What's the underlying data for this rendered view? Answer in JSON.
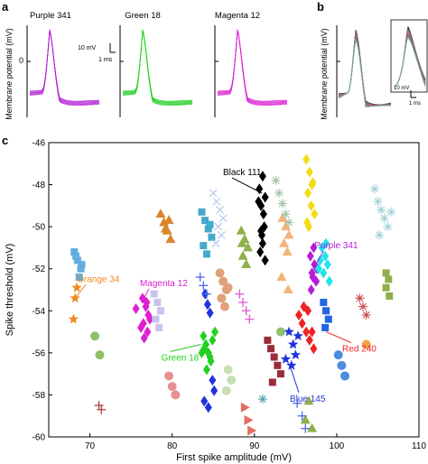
{
  "panels": {
    "a": {
      "label": "a",
      "ylabel": "Membrane potential (mV)",
      "zero_tick": "0",
      "scalebar_v": "10 mV",
      "scalebar_t": "1 ms",
      "traces": [
        {
          "title": "Purple 341",
          "color": "#b41fd6"
        },
        {
          "title": "Green 18",
          "color": "#22d022"
        },
        {
          "title": "Magenta 12",
          "color": "#dc1fd2"
        }
      ]
    },
    "b": {
      "label": "b",
      "ylabel": "Membrane potential (mV)",
      "scalebar_v": "10 mV",
      "scalebar_t": "1 ms",
      "colors": [
        "#000000",
        "#b41fd6",
        "#22d022",
        "#dc1fd2",
        "#f08a1e",
        "#2266dd",
        "#ee2222",
        "#38c8d8",
        "#7ab07a"
      ]
    },
    "c": {
      "label": "c"
    }
  },
  "chart_data": {
    "type": "scatter",
    "title": "",
    "xlabel": "First spike amplitude (mV)",
    "ylabel": "Spike threshold (mV)",
    "xlim": [
      65,
      110
    ],
    "ylim": [
      -60,
      -46
    ],
    "xticks": [
      70,
      80,
      90,
      100,
      110
    ],
    "xtick_labels": [
      "70",
      "80",
      "90",
      "100",
      "110"
    ],
    "yticks": [
      -46,
      -48,
      -50,
      -52,
      -54,
      -56,
      -58,
      -60
    ],
    "ytick_labels": [
      "-46",
      "-48",
      "-50",
      "-52",
      "-54",
      "-56",
      "-58",
      "-60"
    ],
    "grid": false,
    "annotations": [
      {
        "text": "Black 111",
        "color": "#000000",
        "x": 90.9,
        "y": -48.4
      },
      {
        "text": "Purple 341",
        "color": "#b41fd6",
        "x": 97.5,
        "y": -51.8
      },
      {
        "text": "Orange 34",
        "color": "#f08a1e",
        "x": 68.2,
        "y": -53.4
      },
      {
        "text": "Magenta 12",
        "color": "#dc1fd2",
        "x": 76.3,
        "y": -53.6
      },
      {
        "text": "Green 18",
        "color": "#22d022",
        "x": 83.5,
        "y": -55.6
      },
      {
        "text": "Red 240",
        "color": "#ee2222",
        "x": 98.7,
        "y": -55.0
      },
      {
        "text": "Blue 145",
        "color": "#2233dd",
        "x": 94.3,
        "y": -56.6
      }
    ],
    "series": [
      {
        "name": "Black 111",
        "color": "#000000",
        "marker": "diamond",
        "x": [
          91.0,
          90.6,
          91.3,
          90.8,
          91.1,
          90.5,
          91.2,
          90.9,
          91.0,
          90.7,
          91.3,
          90.8
        ],
        "y": [
          -47.6,
          -48.2,
          -48.6,
          -49.0,
          -49.4,
          -48.8,
          -50.0,
          -50.4,
          -50.8,
          -51.2,
          -51.6,
          -50.2
        ]
      },
      {
        "name": "Purple 341",
        "color": "#b41fd6",
        "marker": "diamond",
        "x": [
          96.8,
          97.3,
          97.0,
          97.5,
          96.9,
          97.2,
          97.6,
          97.1
        ],
        "y": [
          -51.4,
          -51.8,
          -52.2,
          -52.6,
          -53.0,
          -51.0,
          -52.0,
          -52.4
        ]
      },
      {
        "name": "Cyan",
        "color": "#1ee4ee",
        "marker": "diamond",
        "x": [
          98.2,
          98.6,
          98.9,
          98.4,
          99.1,
          98.0,
          98.7,
          97.8
        ],
        "y": [
          -51.0,
          -51.4,
          -51.8,
          -52.2,
          -52.6,
          -51.6,
          -50.8,
          -52.0
        ]
      },
      {
        "name": "Yellow",
        "color": "#f2dc14",
        "marker": "diamond",
        "x": [
          96.3,
          96.7,
          97.1,
          96.5,
          96.9,
          97.3,
          96.4,
          97.0,
          96.6
        ],
        "y": [
          -46.8,
          -47.4,
          -47.9,
          -48.4,
          -49.0,
          -49.4,
          -49.8,
          -48.0,
          -50.0
        ]
      },
      {
        "name": "Magenta 12",
        "color": "#dc1fd2",
        "marker": "diamond",
        "x": [
          76.4,
          76.8,
          77.1,
          76.5,
          77.0,
          76.6,
          75.6,
          77.3,
          76.2,
          76.9
        ],
        "y": [
          -53.4,
          -53.8,
          -54.2,
          -54.6,
          -55.0,
          -55.3,
          -53.9,
          -54.4,
          -54.8,
          -53.6
        ]
      },
      {
        "name": "Green 18",
        "color": "#22d022",
        "marker": "diamond",
        "x": [
          83.8,
          84.1,
          84.4,
          84.7,
          83.6,
          84.9,
          85.2,
          84.2,
          83.9,
          84.6
        ],
        "y": [
          -55.2,
          -55.6,
          -56.0,
          -56.4,
          -56.0,
          -55.4,
          -55.0,
          -56.8,
          -55.8,
          -56.2
        ]
      },
      {
        "name": "Red 240",
        "color": "#ee2222",
        "marker": "diamond",
        "x": [
          95.4,
          95.8,
          96.3,
          96.7,
          97.2,
          96.0,
          96.5,
          97.0
        ],
        "y": [
          -54.2,
          -54.6,
          -55.0,
          -55.4,
          -55.8,
          -53.8,
          -54.0,
          -55.0
        ]
      },
      {
        "name": "Blue 145",
        "color": "#2233dd",
        "marker": "star",
        "x": [
          94.2,
          94.7,
          95.0,
          93.8,
          94.5,
          95.3
        ],
        "y": [
          -55.0,
          -55.6,
          -56.1,
          -56.3,
          -56.6,
          -55.2
        ]
      },
      {
        "name": "Orange 34",
        "color": "#f08a1e",
        "marker": "star",
        "x": [
          68.2,
          68.0,
          68.4
        ],
        "y": [
          -53.4,
          -54.4,
          -52.9
        ]
      },
      {
        "name": "Blue diamonds",
        "color": "#2233dd",
        "marker": "diamond",
        "x": [
          84.0,
          84.3,
          84.6,
          84.9,
          85.1,
          83.9,
          84.4
        ],
        "y": [
          -53.2,
          -53.7,
          -54.1,
          -57.3,
          -57.8,
          -58.3,
          -58.6
        ]
      },
      {
        "name": "Teal squares",
        "color": "#45a9c8",
        "marker": "square",
        "x": [
          83.6,
          84.0,
          84.4,
          84.8,
          83.8,
          84.2,
          84.6
        ],
        "y": [
          -49.3,
          -49.7,
          -50.1,
          -50.5,
          -50.9,
          -51.3,
          -49.9
        ]
      },
      {
        "name": "Sky squares",
        "color": "#63aedc",
        "marker": "square",
        "x": [
          68.1,
          68.5,
          68.9,
          68.3,
          68.7,
          69.0
        ],
        "y": [
          -51.2,
          -51.6,
          -52.0,
          -51.4,
          -52.4,
          -51.8
        ]
      },
      {
        "name": "Lavender squares",
        "color": "#c7c4ec",
        "marker": "square",
        "x": [
          77.8,
          78.2,
          78.6,
          78.0,
          78.4
        ],
        "y": [
          -53.2,
          -53.6,
          -54.0,
          -54.4,
          -54.8
        ]
      },
      {
        "name": "Dark red squares",
        "color": "#9a2d3a",
        "marker": "square",
        "x": [
          91.6,
          92.0,
          92.4,
          92.8,
          93.2,
          92.2
        ],
        "y": [
          -55.4,
          -55.8,
          -56.2,
          -56.6,
          -57.0,
          -57.4
        ]
      },
      {
        "name": "Blue squares",
        "color": "#2266e0",
        "marker": "square",
        "x": [
          98.4,
          98.7,
          99.0,
          98.6
        ],
        "y": [
          -53.6,
          -54.0,
          -54.4,
          -54.8
        ]
      },
      {
        "name": "Olive squares",
        "color": "#8fb04a",
        "marker": "square",
        "x": [
          106.0,
          106.3,
          106.0,
          106.4
        ],
        "y": [
          -52.2,
          -52.5,
          -52.9,
          -53.3
        ]
      },
      {
        "name": "Orange triangles",
        "color": "#d9862c",
        "marker": "triangle",
        "x": [
          78.6,
          79.0,
          79.4,
          79.8,
          79.2,
          79.6
        ],
        "y": [
          -49.4,
          -49.8,
          -50.2,
          -50.6,
          -50.1,
          -49.7
        ]
      },
      {
        "name": "Olive triangles",
        "color": "#8fb04a",
        "marker": "triangle",
        "x": [
          88.4,
          88.8,
          89.2,
          88.6,
          89.0,
          88.5
        ],
        "y": [
          -50.2,
          -50.6,
          -51.0,
          -51.4,
          -51.8,
          -50.8
        ]
      },
      {
        "name": "Peach triangles",
        "color": "#f2b47a",
        "marker": "triangle",
        "x": [
          93.4,
          93.8,
          94.2,
          93.6,
          94.0,
          93.3,
          94.1
        ],
        "y": [
          -49.6,
          -50.0,
          -50.4,
          -50.8,
          -51.2,
          -52.4,
          -53.0
        ]
      },
      {
        "name": "Olive triangles low",
        "color": "#8fb04a",
        "marker": "triangle",
        "x": [
          96.6,
          96.2,
          97.0
        ],
        "y": [
          -58.3,
          -59.2,
          -59.6
        ]
      },
      {
        "name": "Salmon triangles",
        "color": "#e76d62",
        "marker": "triangle-right",
        "x": [
          88.8,
          89.2,
          89.6
        ],
        "y": [
          -58.6,
          -59.2,
          -59.7
        ]
      },
      {
        "name": "Peach circles",
        "color": "#e0a07a",
        "marker": "circle",
        "x": [
          85.8,
          86.2,
          86.6,
          86.0,
          86.4,
          86.8
        ],
        "y": [
          -52.2,
          -52.6,
          -53.0,
          -53.4,
          -53.8,
          -52.9
        ]
      },
      {
        "name": "Pink circles",
        "color": "#e89090",
        "marker": "circle",
        "x": [
          79.6,
          80.0,
          80.4
        ],
        "y": [
          -57.1,
          -57.6,
          -58.0
        ]
      },
      {
        "name": "Light green circles",
        "color": "#c7e0b2",
        "marker": "circle",
        "x": [
          86.8,
          87.2,
          86.6
        ],
        "y": [
          -56.8,
          -57.3,
          -57.8
        ]
      },
      {
        "name": "Green circles",
        "color": "#8fc06a",
        "marker": "circle",
        "x": [
          70.6,
          71.2,
          93.2
        ],
        "y": [
          -55.2,
          -56.1,
          -55.0
        ]
      },
      {
        "name": "Blue circles",
        "color": "#4a8ee0",
        "marker": "circle",
        "x": [
          100.2,
          100.6,
          101.0
        ],
        "y": [
          -56.1,
          -56.6,
          -57.1
        ]
      },
      {
        "name": "Orange circles",
        "color": "#f4a046",
        "marker": "circle",
        "x": [
          103.6
        ],
        "y": [
          -55.6
        ]
      },
      {
        "name": "Light blue crosses",
        "color": "#b9cdec",
        "marker": "x",
        "x": [
          85.0,
          85.4,
          85.8,
          86.2,
          85.6,
          86.0,
          85.3
        ],
        "y": [
          -48.4,
          -48.8,
          -49.2,
          -49.6,
          -50.0,
          -50.4,
          -50.8
        ]
      },
      {
        "name": "Blue plus",
        "color": "#4a6ce0",
        "marker": "plus",
        "x": [
          83.4,
          83.8,
          84.2,
          95.2,
          95.8,
          96.2
        ],
        "y": [
          -52.4,
          -52.8,
          -53.2,
          -58.4,
          -59.0,
          -59.6
        ]
      },
      {
        "name": "Magenta plus",
        "color": "#e05ad6",
        "marker": "plus",
        "x": [
          88.2,
          88.6,
          89.0,
          89.4
        ],
        "y": [
          -53.2,
          -53.6,
          -54.0,
          -54.4
        ]
      },
      {
        "name": "Brown plus",
        "color": "#b34040",
        "marker": "plus",
        "x": [
          71.1,
          71.4
        ],
        "y": [
          -58.5,
          -58.7
        ]
      },
      {
        "name": "Asterisks",
        "color": "#9fd0d6",
        "marker": "asterisk",
        "x": [
          104.6,
          105.0,
          105.4,
          105.8,
          106.2,
          106.6,
          105.2
        ],
        "y": [
          -48.2,
          -48.8,
          -49.2,
          -49.6,
          -50.0,
          -49.3,
          -50.4
        ]
      },
      {
        "name": "Sage asterisks",
        "color": "#9fc2a6",
        "marker": "asterisk",
        "x": [
          92.6,
          93.0,
          93.4,
          93.8,
          94.2
        ],
        "y": [
          -47.8,
          -48.4,
          -48.9,
          -49.4,
          -49.8
        ]
      },
      {
        "name": "Red asterisks",
        "color": "#c84a4a",
        "marker": "asterisk",
        "x": [
          102.8,
          103.2,
          103.6
        ],
        "y": [
          -53.4,
          -53.8,
          -54.2
        ]
      },
      {
        "name": "Teal asterisk",
        "color": "#4aa0b0",
        "marker": "asterisk",
        "x": [
          91.0
        ],
        "y": [
          -58.2
        ]
      }
    ]
  }
}
